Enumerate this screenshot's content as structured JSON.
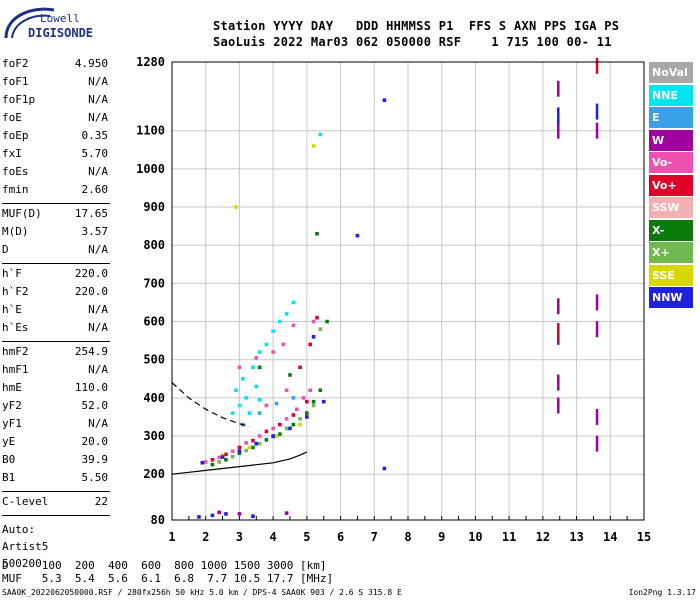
{
  "logo": {
    "line1": "Lowell",
    "line2": "DIGISONDE",
    "accent": "#1d2f86"
  },
  "header": {
    "line1": "Station YYYY DAY   DDD HHMMSS P1  FFS S AXN PPS IGA PS",
    "line2": "SaoLuis 2022 Mar03 062 050000 RSF    1 715 100 00- 11"
  },
  "params": {
    "group1": [
      {
        "label": "foF2",
        "value": "4.950"
      },
      {
        "label": "foF1",
        "value": "N/A"
      },
      {
        "label": "foF1p",
        "value": "N/A"
      },
      {
        "label": "foE",
        "value": "N/A"
      },
      {
        "label": "foEp",
        "value": "0.35"
      },
      {
        "label": "fxI",
        "value": "5.70"
      },
      {
        "label": "foEs",
        "value": "N/A"
      },
      {
        "label": "fmin",
        "value": "2.60"
      }
    ],
    "group2": [
      {
        "label": "MUF(D)",
        "value": "17.65"
      },
      {
        "label": "M(D)",
        "value": "3.57"
      },
      {
        "label": "D",
        "value": "N/A"
      }
    ],
    "group3": [
      {
        "label": "h`F",
        "value": "220.0"
      },
      {
        "label": "h`F2",
        "value": "220.0"
      },
      {
        "label": "h`E",
        "value": "N/A"
      },
      {
        "label": "h`Es",
        "value": "N/A"
      }
    ],
    "group4": [
      {
        "label": "hmF2",
        "value": "254.9"
      },
      {
        "label": "hmF1",
        "value": "N/A"
      },
      {
        "label": "hmE",
        "value": "110.0"
      },
      {
        "label": "yF2",
        "value": "52.0"
      },
      {
        "label": "yF1",
        "value": "N/A"
      },
      {
        "label": "yE",
        "value": "20.0"
      },
      {
        "label": "B0",
        "value": "39.9"
      },
      {
        "label": "B1",
        "value": "5.50"
      }
    ],
    "group5": [
      {
        "label": "C-level",
        "value": "22"
      }
    ],
    "notes": [
      "Auto:",
      "Artist5",
      "500200"
    ]
  },
  "legend": [
    {
      "label": "NoVal",
      "color": "#a8a8a8"
    },
    {
      "label": "NNE",
      "color": "#00e6f0"
    },
    {
      "label": "E",
      "color": "#3aa0e8"
    },
    {
      "label": "W",
      "color": "#a000a0"
    },
    {
      "label": "Vo-",
      "color": "#f050b0"
    },
    {
      "label": "Vo+",
      "color": "#e0002a"
    },
    {
      "label": "SSW",
      "color": "#f4b0b0"
    },
    {
      "label": "X-",
      "color": "#0a7a0a"
    },
    {
      "label": "X+",
      "color": "#70b850"
    },
    {
      "label": "SSE",
      "color": "#d8d800"
    },
    {
      "label": "NNW",
      "color": "#2020e0"
    }
  ],
  "footer": {
    "line1": "D     100  200  400  600  800 1000 1500 3000 [km]",
    "line2": "MUF   5.3  5.4  5.6  6.1  6.8  7.7 10.5 17.7 [MHz]",
    "bottom": "SAA0K_2022062050000.RSF / 280fx256h 50 kHz 5.0 km / DPS-4 SAA0K 903 / 2.6 S 315.8 E",
    "version": "Ion2Png 1.3.17"
  },
  "chart_data": {
    "type": "scatter",
    "title": "",
    "xlabel": "",
    "ylabel": "",
    "xlim": [
      1,
      15
    ],
    "ylim": [
      80,
      1280
    ],
    "x_ticks": [
      "1",
      "2",
      "3",
      "4",
      "5",
      "6",
      "7",
      "8",
      "9",
      "10",
      "11",
      "12",
      "13",
      "14",
      "15"
    ],
    "y_ticks": [
      "80",
      "200",
      "300",
      "400",
      "500",
      "600",
      "700",
      "800",
      "900",
      "1000",
      "1100",
      "1280"
    ],
    "grid": true,
    "series": [
      {
        "name": "NNE",
        "color": "#00e6f0",
        "points": [
          [
            2.9,
            420
          ],
          [
            3.1,
            450
          ],
          [
            3.4,
            480
          ],
          [
            3.6,
            520
          ],
          [
            3.8,
            540
          ],
          [
            4.0,
            575
          ],
          [
            4.2,
            600
          ],
          [
            3.2,
            400
          ],
          [
            3.5,
            430
          ],
          [
            3.0,
            380
          ],
          [
            2.8,
            360
          ],
          [
            3.3,
            360
          ],
          [
            3.6,
            395
          ],
          [
            4.4,
            620
          ],
          [
            4.6,
            650
          ],
          [
            5.4,
            1090
          ]
        ]
      },
      {
        "name": "W",
        "color": "#a000a0",
        "points": [
          [
            12.45,
            1210
          ],
          [
            12.45,
            1100
          ],
          [
            12.45,
            640
          ],
          [
            12.45,
            560
          ],
          [
            12.45,
            440
          ],
          [
            12.45,
            380
          ],
          [
            13.6,
            1100
          ],
          [
            13.6,
            650
          ],
          [
            13.6,
            580
          ],
          [
            13.6,
            350
          ],
          [
            13.6,
            280
          ],
          [
            2.4,
            100
          ],
          [
            3.0,
            96
          ],
          [
            4.4,
            98
          ]
        ]
      },
      {
        "name": "Vo-",
        "color": "#f050b0",
        "points": [
          [
            2.0,
            232
          ],
          [
            2.4,
            244
          ],
          [
            2.8,
            260
          ],
          [
            3.2,
            282
          ],
          [
            3.6,
            300
          ],
          [
            4.0,
            320
          ],
          [
            4.4,
            345
          ],
          [
            4.7,
            370
          ],
          [
            4.9,
            400
          ],
          [
            5.1,
            420
          ],
          [
            3.0,
            480
          ],
          [
            3.5,
            505
          ],
          [
            4.0,
            520
          ],
          [
            4.3,
            540
          ],
          [
            4.6,
            590
          ],
          [
            5.2,
            600
          ],
          [
            4.4,
            420
          ],
          [
            3.8,
            380
          ]
        ]
      },
      {
        "name": "Vo+",
        "color": "#e0002a",
        "points": [
          [
            2.2,
            238
          ],
          [
            2.6,
            252
          ],
          [
            3.0,
            270
          ],
          [
            3.4,
            288
          ],
          [
            3.8,
            312
          ],
          [
            4.2,
            330
          ],
          [
            4.6,
            355
          ],
          [
            5.0,
            390
          ],
          [
            4.8,
            480
          ],
          [
            5.1,
            540
          ],
          [
            5.3,
            610
          ],
          [
            12.45,
            575
          ],
          [
            13.6,
            1270
          ]
        ]
      },
      {
        "name": "X-",
        "color": "#0a7a0a",
        "points": [
          [
            2.2,
            225
          ],
          [
            2.6,
            238
          ],
          [
            3.0,
            255
          ],
          [
            3.4,
            270
          ],
          [
            3.8,
            290
          ],
          [
            4.2,
            305
          ],
          [
            4.6,
            330
          ],
          [
            5.0,
            360
          ],
          [
            5.2,
            390
          ],
          [
            5.4,
            420
          ],
          [
            5.6,
            600
          ],
          [
            5.3,
            830
          ],
          [
            4.5,
            460
          ],
          [
            3.6,
            480
          ]
        ]
      },
      {
        "name": "X+",
        "color": "#70b850",
        "points": [
          [
            2.4,
            232
          ],
          [
            2.8,
            246
          ],
          [
            3.2,
            262
          ],
          [
            3.6,
            280
          ],
          [
            4.0,
            298
          ],
          [
            4.4,
            320
          ],
          [
            4.8,
            345
          ],
          [
            5.2,
            380
          ],
          [
            5.4,
            580
          ]
        ]
      },
      {
        "name": "SSE",
        "color": "#d8d800",
        "points": [
          [
            2.5,
            250
          ],
          [
            3.3,
            270
          ],
          [
            4.1,
            300
          ],
          [
            4.8,
            330
          ],
          [
            5.2,
            1060
          ],
          [
            2.9,
            900
          ]
        ]
      },
      {
        "name": "NNW",
        "color": "#2020e0",
        "points": [
          [
            1.8,
            88
          ],
          [
            2.2,
            92
          ],
          [
            2.6,
            96
          ],
          [
            3.4,
            90
          ],
          [
            1.9,
            230
          ],
          [
            2.5,
            245
          ],
          [
            3.0,
            260
          ],
          [
            3.5,
            280
          ],
          [
            4.0,
            300
          ],
          [
            4.5,
            320
          ],
          [
            5.0,
            350
          ],
          [
            5.5,
            390
          ],
          [
            5.2,
            560
          ],
          [
            7.3,
            215
          ],
          [
            7.3,
            1180
          ],
          [
            6.5,
            825
          ],
          [
            12.45,
            1140
          ],
          [
            13.6,
            1150
          ]
        ]
      },
      {
        "name": "E",
        "color": "#3aa0e8",
        "points": [
          [
            3.1,
            330
          ],
          [
            3.6,
            360
          ],
          [
            4.1,
            385
          ],
          [
            4.6,
            400
          ]
        ]
      }
    ],
    "trace_lines": [
      {
        "style": "solid",
        "color": "#000000",
        "points": [
          [
            1.0,
            200
          ],
          [
            1.5,
            205
          ],
          [
            2.0,
            210
          ],
          [
            2.5,
            215
          ],
          [
            3.0,
            220
          ],
          [
            3.5,
            225
          ],
          [
            4.0,
            230
          ],
          [
            4.5,
            240
          ],
          [
            4.8,
            250
          ],
          [
            5.0,
            258
          ]
        ]
      },
      {
        "style": "dashed",
        "color": "#000000",
        "points": [
          [
            1.0,
            440
          ],
          [
            1.5,
            400
          ],
          [
            2.0,
            370
          ],
          [
            2.5,
            348
          ],
          [
            3.0,
            332
          ],
          [
            3.3,
            325
          ]
        ]
      }
    ]
  }
}
